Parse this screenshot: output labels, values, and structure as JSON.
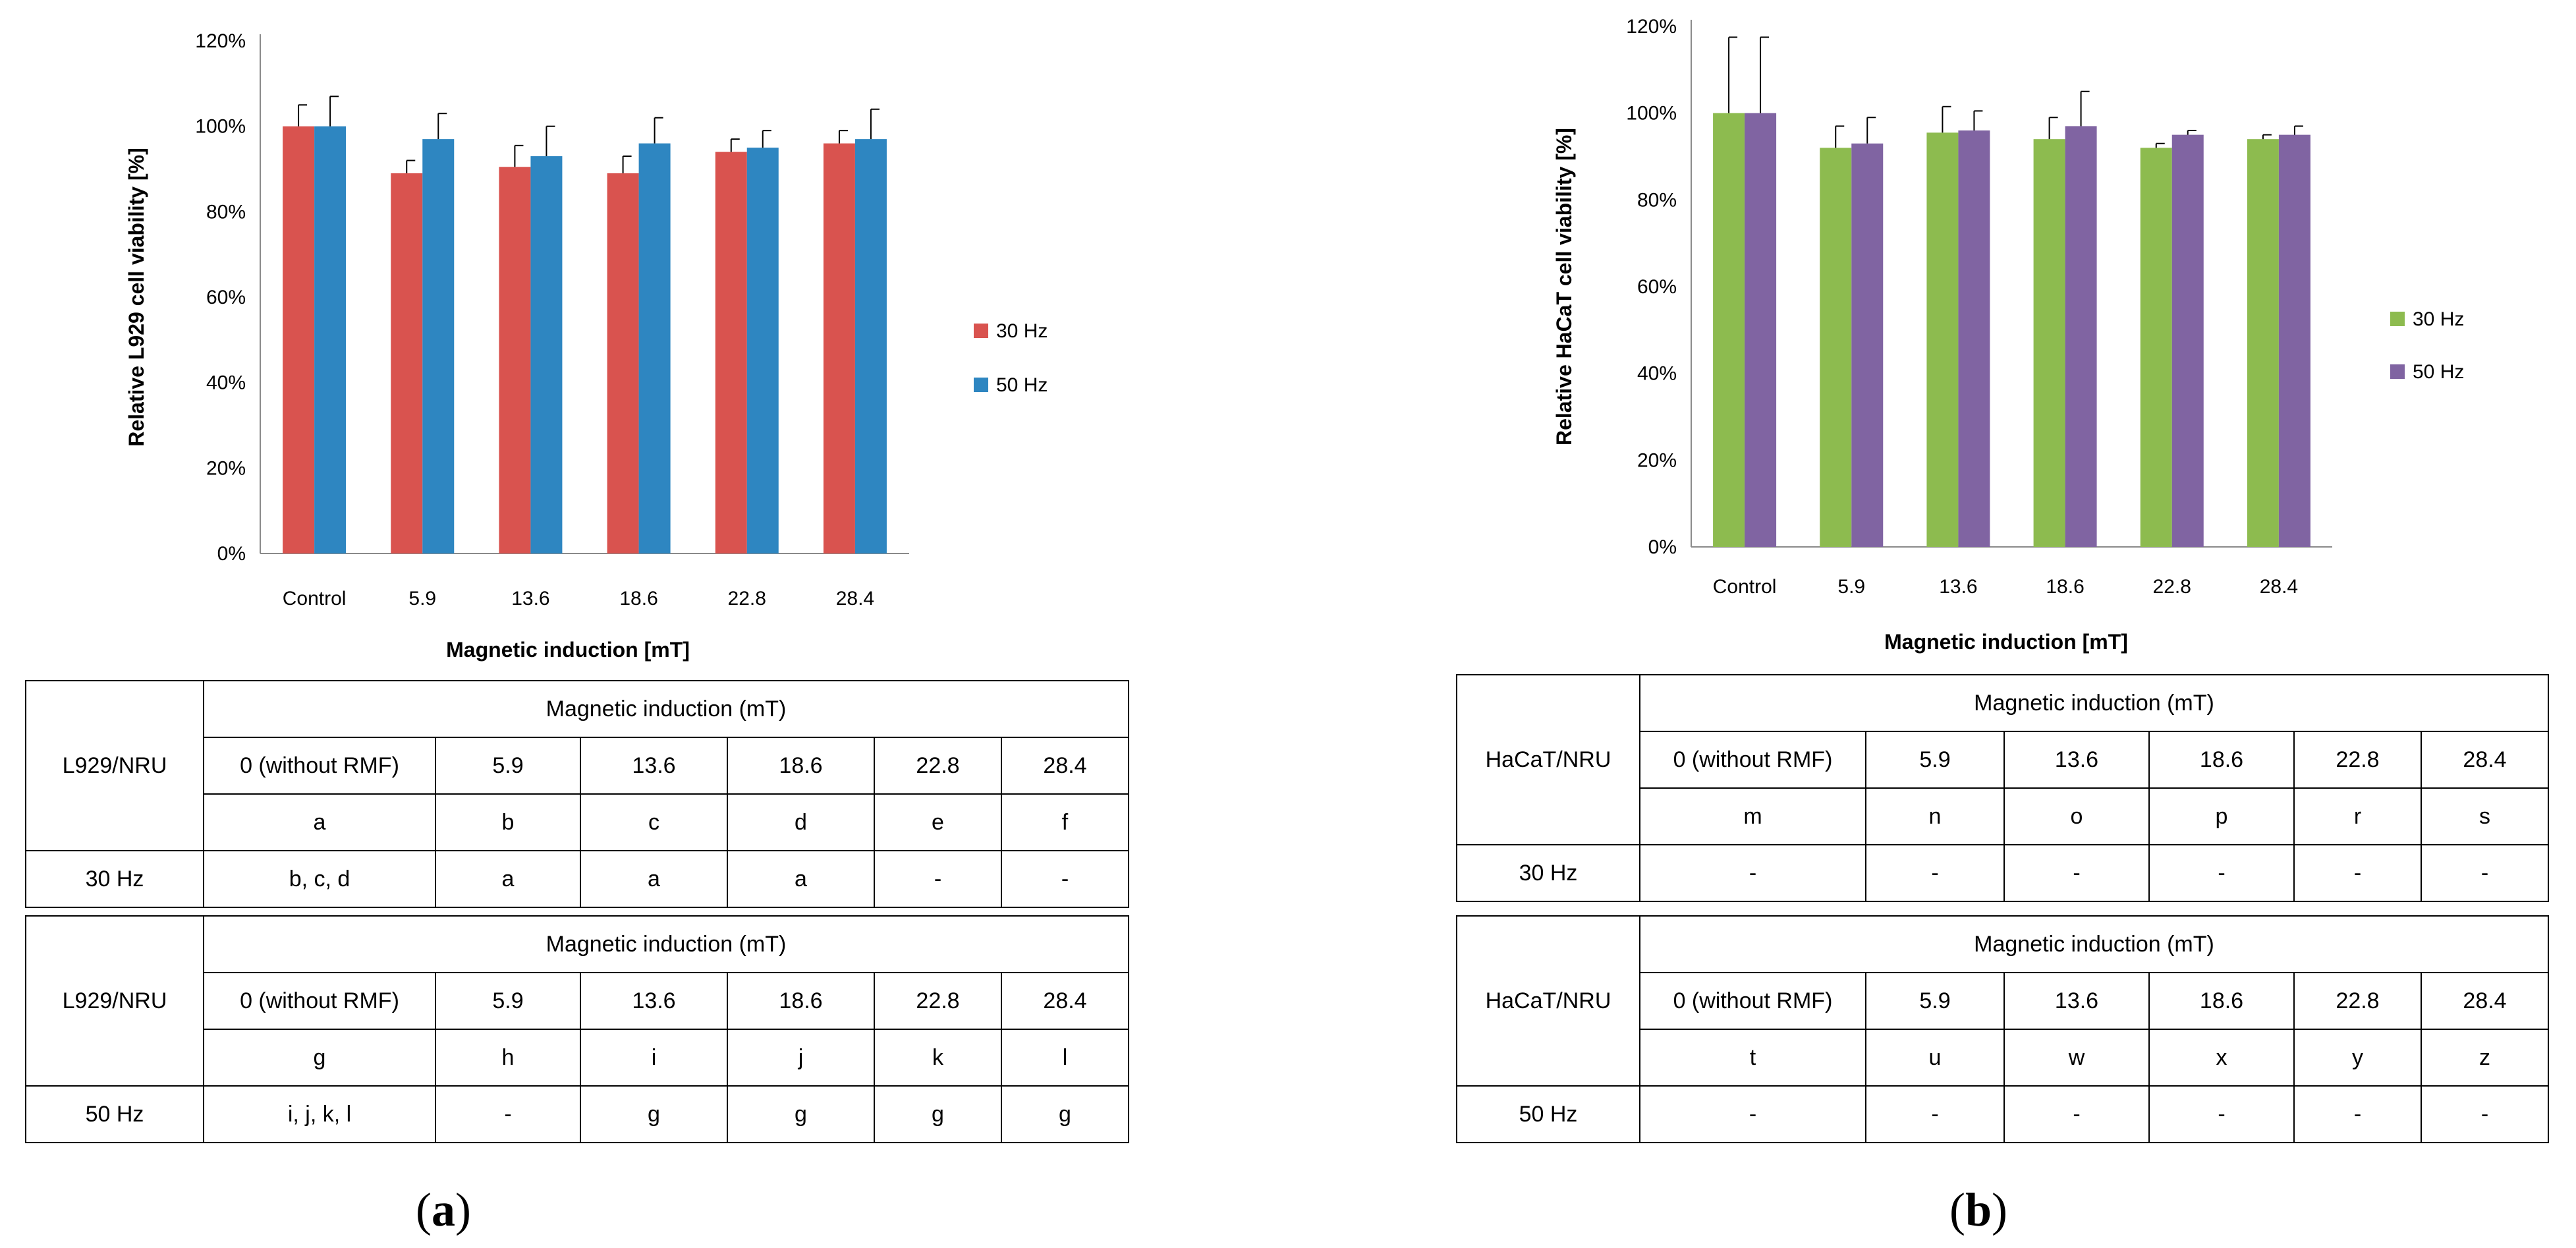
{
  "panels": [
    {
      "id": "a",
      "caption_letter": "a",
      "chart_data": {
        "type": "bar",
        "title": "",
        "xlabel": "Magnetic induction [mT]",
        "ylabel": "Relative L929 cell viability [%]",
        "categories": [
          "Control",
          "5.9",
          "13.6",
          "18.6",
          "22.8",
          "28.4"
        ],
        "yticks": [
          "0%",
          "20%",
          "40%",
          "60%",
          "80%",
          "100%",
          "120%"
        ],
        "ylim": [
          0,
          120
        ],
        "grid": false,
        "legend_position": "right",
        "series": [
          {
            "name": "30 Hz",
            "color": "#d9534f",
            "values": [
              100,
              89,
              90.5,
              89,
              94,
              96
            ],
            "errors": [
              5,
              3,
              5,
              4,
              3,
              3
            ]
          },
          {
            "name": "50 Hz",
            "color": "#2e86c1",
            "values": [
              100,
              97,
              93,
              96,
              95,
              97
            ],
            "errors": [
              7,
              6,
              7,
              6,
              4,
              7
            ]
          }
        ]
      },
      "tables": [
        {
          "row_label": "L929/NRU",
          "header": "Magnetic induction (mT)",
          "inductions": [
            "0 (without RMF)",
            "5.9",
            "13.6",
            "18.6",
            "22.8",
            "28.4"
          ],
          "letters": [
            "a",
            "b",
            "c",
            "d",
            "e",
            "f"
          ],
          "freq_label": "30 Hz",
          "results": [
            "b, c, d",
            "a",
            "a",
            "a",
            "-",
            "-"
          ]
        },
        {
          "row_label": "L929/NRU",
          "header": "Magnetic induction (mT)",
          "inductions": [
            "0 (without RMF)",
            "5.9",
            "13.6",
            "18.6",
            "22.8",
            "28.4"
          ],
          "letters": [
            "g",
            "h",
            "i",
            "j",
            "k",
            "l"
          ],
          "freq_label": "50 Hz",
          "results": [
            "i, j, k, l",
            "-",
            "g",
            "g",
            "g",
            "g"
          ]
        }
      ]
    },
    {
      "id": "b",
      "caption_letter": "b",
      "chart_data": {
        "type": "bar",
        "title": "",
        "xlabel": "Magnetic induction [mT]",
        "ylabel": "Relative HaCaT cell viability [%]",
        "categories": [
          "Control",
          "5.9",
          "13.6",
          "18.6",
          "22.8",
          "28.4"
        ],
        "yticks": [
          "0%",
          "20%",
          "40%",
          "60%",
          "80%",
          "100%",
          "120%"
        ],
        "ylim": [
          0,
          120
        ],
        "grid": false,
        "legend_position": "right",
        "series": [
          {
            "name": "30 Hz",
            "color": "#8dbb4f",
            "values": [
              100,
              92,
              95.5,
              94,
              92,
              94
            ],
            "errors": [
              17.5,
              5,
              6,
              5,
              1,
              1
            ]
          },
          {
            "name": "50 Hz",
            "color": "#8064a2",
            "values": [
              100,
              93,
              96,
              97,
              95,
              95
            ],
            "errors": [
              17.5,
              6,
              4.5,
              8,
              1,
              2
            ]
          }
        ]
      },
      "tables": [
        {
          "row_label": "HaCaT/NRU",
          "header": "Magnetic induction (mT)",
          "inductions": [
            "0 (without RMF)",
            "5.9",
            "13.6",
            "18.6",
            "22.8",
            "28.4"
          ],
          "letters": [
            "m",
            "n",
            "o",
            "p",
            "r",
            "s"
          ],
          "freq_label": "30 Hz",
          "results": [
            "-",
            "-",
            "-",
            "-",
            "-",
            "-"
          ]
        },
        {
          "row_label": "HaCaT/NRU",
          "header": "Magnetic induction (mT)",
          "inductions": [
            "0 (without RMF)",
            "5.9",
            "13.6",
            "18.6",
            "22.8",
            "28.4"
          ],
          "letters": [
            "t",
            "u",
            "w",
            "x",
            "y",
            "z"
          ],
          "freq_label": "50 Hz",
          "results": [
            "-",
            "-",
            "-",
            "-",
            "-",
            "-"
          ]
        }
      ]
    }
  ]
}
